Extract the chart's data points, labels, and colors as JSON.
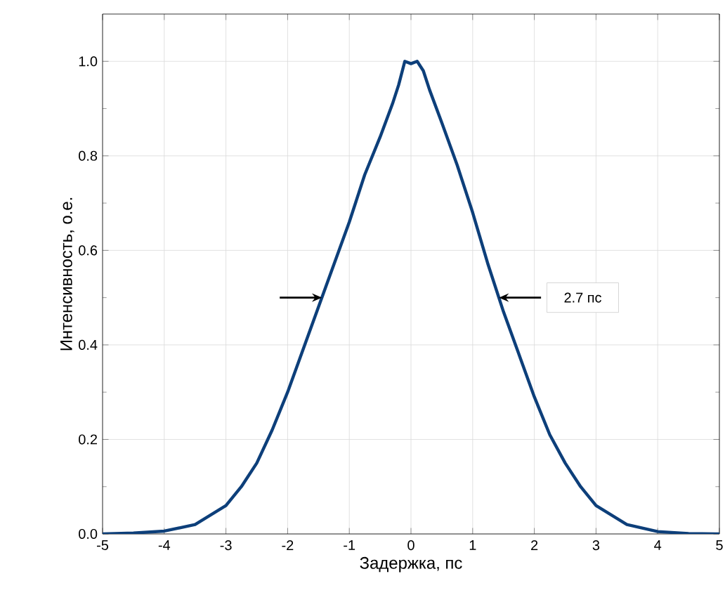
{
  "chart_data": {
    "type": "line",
    "xlabel": "Задержка, пс",
    "ylabel": "Интенсивность, о.е.",
    "x": [
      -5,
      -4.5,
      -4,
      -3.5,
      -3,
      -2.75,
      -2.5,
      -2.25,
      -2,
      -1.75,
      -1.5,
      -1.25,
      -1,
      -0.75,
      -0.5,
      -0.3,
      -0.2,
      -0.1,
      0,
      0.1,
      0.2,
      0.3,
      0.5,
      0.75,
      1,
      1.25,
      1.5,
      1.75,
      2,
      2.25,
      2.5,
      2.75,
      3,
      3.5,
      4,
      4.5,
      5
    ],
    "series": [
      {
        "color": "#0d3f7a",
        "values": [
          0,
          0.002,
          0.006,
          0.02,
          0.06,
          0.1,
          0.15,
          0.22,
          0.3,
          0.39,
          0.48,
          0.57,
          0.66,
          0.76,
          0.84,
          0.91,
          0.95,
          1.0,
          0.995,
          1.0,
          0.98,
          0.94,
          0.87,
          0.78,
          0.68,
          0.57,
          0.47,
          0.38,
          0.29,
          0.21,
          0.15,
          0.1,
          0.06,
          0.02,
          0.005,
          0.001,
          0
        ]
      }
    ],
    "xlim": [
      -5,
      5
    ],
    "ylim": [
      0,
      1.1
    ],
    "xticks": [
      -5,
      -4,
      -3,
      -2,
      -1,
      0,
      1,
      2,
      3,
      4,
      5
    ],
    "yticks": [
      {
        "value": 0,
        "label": "0.0"
      },
      0.2,
      0.4,
      0.6,
      0.8,
      {
        "value": 1,
        "label": "1.0"
      }
    ],
    "grid": true,
    "line_style": "solid",
    "marker": "none",
    "annotations": [
      "2.7 пс"
    ]
  }
}
